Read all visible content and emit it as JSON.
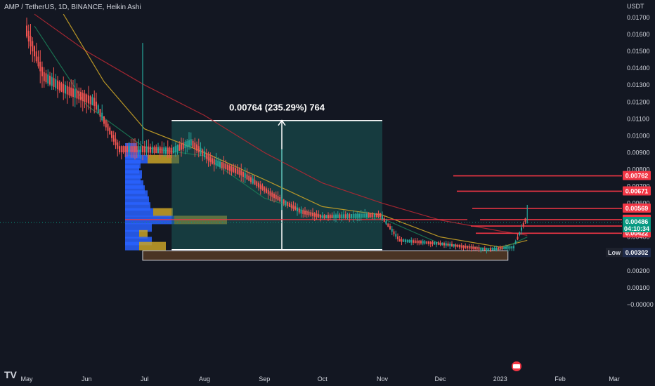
{
  "header": {
    "symbol_line": "AMP / TetherUS, 1D, BINANCE, Heikin Ashi",
    "currency": "USDT"
  },
  "chart_data": {
    "type": "candlestick",
    "style": "Heikin Ashi",
    "ylim": [
      -0.0001,
      0.0175
    ],
    "y_ticks": [
      "0.01700",
      "0.01600",
      "0.01500",
      "0.01400",
      "0.01300",
      "0.01200",
      "0.01100",
      "0.01000",
      "0.00900",
      "0.00800",
      "0.00700",
      "0.00600",
      "0.00400",
      "0.00300",
      "0.00200",
      "0.00100",
      "−0.00000"
    ],
    "x_ticks": [
      "May",
      "Jun",
      "Jul",
      "Aug",
      "Sep",
      "Oct",
      "Nov",
      "Dec",
      "2023",
      "Feb",
      "Mar"
    ],
    "price_path": [
      {
        "date": "2022-05-01",
        "price": 0.0162
      },
      {
        "date": "2022-05-05",
        "price": 0.015
      },
      {
        "date": "2022-05-10",
        "price": 0.0135
      },
      {
        "date": "2022-05-20",
        "price": 0.0128
      },
      {
        "date": "2022-06-05",
        "price": 0.012
      },
      {
        "date": "2022-06-18",
        "price": 0.0092
      },
      {
        "date": "2022-06-30",
        "price": 0.0092
      },
      {
        "date": "2022-07-15",
        "price": 0.0091
      },
      {
        "date": "2022-07-25",
        "price": 0.0096
      },
      {
        "date": "2022-08-05",
        "price": 0.0085
      },
      {
        "date": "2022-08-20",
        "price": 0.0078
      },
      {
        "date": "2022-09-05",
        "price": 0.0065
      },
      {
        "date": "2022-09-20",
        "price": 0.0055
      },
      {
        "date": "2022-10-01",
        "price": 0.0052
      },
      {
        "date": "2022-10-31",
        "price": 0.0053
      },
      {
        "date": "2022-11-10",
        "price": 0.0038
      },
      {
        "date": "2022-12-01",
        "price": 0.0036
      },
      {
        "date": "2022-12-25",
        "price": 0.00325
      },
      {
        "date": "2023-01-08",
        "price": 0.0034
      },
      {
        "date": "2023-01-14",
        "price": 0.005
      }
    ],
    "measure": {
      "label": "0.00764 (235.29%) 764",
      "from": 0.00325,
      "to": 0.0109
    },
    "levels": [
      {
        "label": "0.00762",
        "value": 0.00762,
        "color": "#f23645"
      },
      {
        "label": "0.00671",
        "value": 0.00671,
        "color": "#f23645"
      },
      {
        "label": "0.00569",
        "value": 0.00569,
        "color": "#f23645"
      },
      {
        "label": "0.00503",
        "value": 0.00503,
        "color": "#f23645"
      },
      {
        "label": "0.00465",
        "value": 0.00465,
        "color": "#f23645"
      },
      {
        "label": "0.00422",
        "value": 0.00422,
        "color": "#f23645"
      }
    ],
    "current_price": {
      "label": "0.00486",
      "countdown": "04:10:34",
      "value": 0.00486,
      "color": "#089981"
    },
    "low": {
      "label": "Low",
      "value_label": "0.00302",
      "value": 0.00302
    },
    "support_zone": [
      0.00262,
      0.00318
    ],
    "grid": false
  }
}
